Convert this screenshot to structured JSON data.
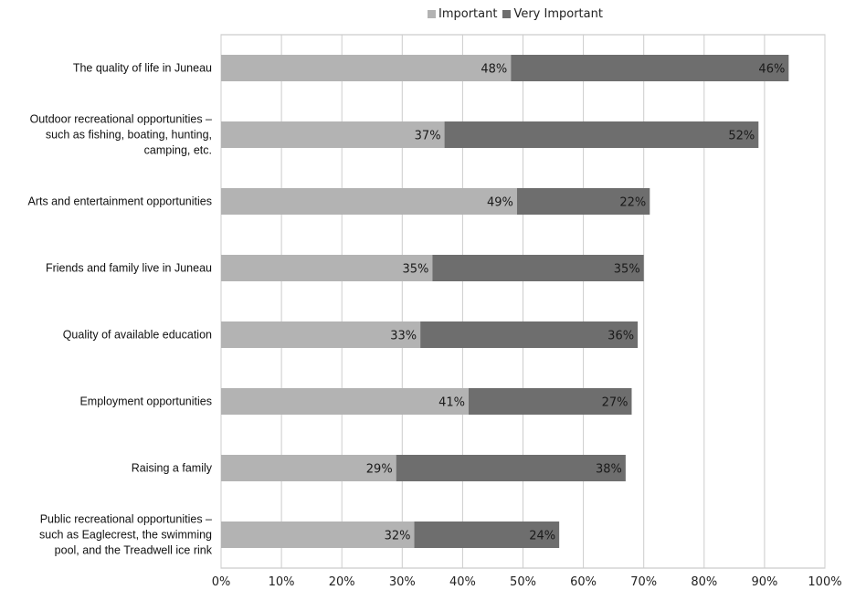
{
  "chart_data": {
    "type": "bar",
    "orientation": "horizontal",
    "stacked": true,
    "title": "",
    "xlabel": "",
    "ylabel": "",
    "xlim": [
      0,
      100
    ],
    "x_ticks": [
      "0%",
      "10%",
      "20%",
      "30%",
      "40%",
      "50%",
      "60%",
      "70%",
      "80%",
      "90%",
      "100%"
    ],
    "grid": true,
    "legend_position": "top",
    "categories": [
      [
        "The quality of life in Juneau"
      ],
      [
        "Outdoor recreational opportunities –",
        "such as fishing, boating, hunting,",
        "camping, etc."
      ],
      [
        "Arts and entertainment opportunities"
      ],
      [
        "Friends and family live in Juneau"
      ],
      [
        "Quality of available education"
      ],
      [
        "Employment opportunities"
      ],
      [
        "Raising a family"
      ],
      [
        "Public recreational opportunities –",
        "such as Eaglecrest, the swimming",
        "pool, and the Treadwell ice rink"
      ]
    ],
    "series": [
      {
        "name": "Important",
        "color": "#b3b3b3",
        "values": [
          48,
          37,
          49,
          35,
          33,
          41,
          29,
          32
        ],
        "labels": [
          "48%",
          "37%",
          "49%",
          "35%",
          "33%",
          "41%",
          "29%",
          "32%"
        ]
      },
      {
        "name": "Very Important",
        "color": "#6e6e6e",
        "values": [
          46,
          52,
          22,
          35,
          36,
          27,
          38,
          24
        ],
        "labels": [
          "46%",
          "52%",
          "22%",
          "35%",
          "36%",
          "27%",
          "38%",
          "24%"
        ]
      }
    ]
  }
}
